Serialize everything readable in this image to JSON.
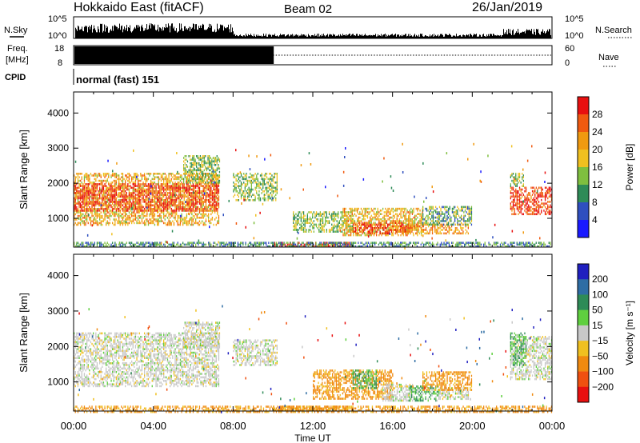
{
  "header": {
    "title": "Hokkaido East (fitACF)",
    "beam": "Beam 02",
    "date": "26/Jan/2019"
  },
  "strip": {
    "nsky_label": "N.Sky",
    "nsearch_label": "N.Search",
    "nsky_ticks": [
      "10^5",
      "10^0"
    ],
    "nsearch_ticks": [
      "10^5",
      "10^0"
    ],
    "freq_label_1": "Freq.",
    "freq_label_2": "[MHz]",
    "freq_ticks": [
      "18",
      "8"
    ],
    "nave_label": "Nave",
    "nave_ticks": [
      "60",
      "0"
    ],
    "cpid_label": "CPID",
    "cpid_text": "normal (fast) 151"
  },
  "axes": {
    "ylabel": "Slant Range [km]",
    "xlabel": "Time UT",
    "y_ticks": [
      "1000",
      "2000",
      "3000",
      "4000"
    ],
    "x_ticks": [
      "00:00",
      "04:00",
      "08:00",
      "12:00",
      "16:00",
      "20:00",
      "00:00"
    ]
  },
  "colorbars": {
    "power": {
      "label": "Power [dB]",
      "ticks": [
        "4",
        "8",
        "12",
        "16",
        "20",
        "24",
        "28"
      ],
      "colors": [
        "#1a1aff",
        "#2f4fbf",
        "#2e8b57",
        "#7fbf3f",
        "#f0c020",
        "#f09a10",
        "#f05a10",
        "#e81010"
      ]
    },
    "velocity": {
      "label": "Velocity [m s⁻¹]",
      "ticks": [
        "200",
        "100",
        "50",
        "15",
        "−15",
        "−50",
        "−100",
        "−200"
      ],
      "colors": [
        "#2020c0",
        "#2e6da4",
        "#2e8b57",
        "#5fcf3f",
        "#c8c8c8",
        "#f0c020",
        "#f08a10",
        "#f05010",
        "#e81010"
      ]
    }
  },
  "chart_data": [
    {
      "type": "heatmap",
      "title": "Power [dB]",
      "xlabel": "Time UT",
      "ylabel": "Slant Range [km]",
      "xlim": [
        "00:00",
        "24:00"
      ],
      "ylim": [
        180,
        4600
      ],
      "color_scale": [
        0,
        32
      ],
      "regions": [
        {
          "t0": 0.0,
          "t1": 7.3,
          "r0": 800,
          "r1": 2300,
          "value": 20
        },
        {
          "t0": 0.0,
          "t1": 7.3,
          "r0": 1200,
          "r1": 2000,
          "value": 28
        },
        {
          "t0": 5.5,
          "t1": 7.3,
          "r0": 2000,
          "r1": 2800,
          "value": 14
        },
        {
          "t0": 8.0,
          "t1": 10.2,
          "r0": 1500,
          "r1": 2300,
          "value": 14
        },
        {
          "t0": 10.0,
          "t1": 14.0,
          "r0": 200,
          "r1": 330,
          "value": 28
        },
        {
          "t0": 11.0,
          "t1": 14.0,
          "r0": 600,
          "r1": 1200,
          "value": 14
        },
        {
          "t0": 13.5,
          "t1": 17.5,
          "r0": 500,
          "r1": 1300,
          "value": 20
        },
        {
          "t0": 14.0,
          "t1": 17.0,
          "r0": 550,
          "r1": 900,
          "value": 28
        },
        {
          "t0": 16.5,
          "t1": 19.8,
          "r0": 550,
          "r1": 850,
          "value": 22
        },
        {
          "t0": 17.5,
          "t1": 20.0,
          "r0": 800,
          "r1": 1350,
          "value": 12
        },
        {
          "t0": 21.9,
          "t1": 24.0,
          "r0": 1100,
          "r1": 1900,
          "value": 28
        },
        {
          "t0": 21.9,
          "t1": 22.6,
          "r0": 1900,
          "r1": 2300,
          "value": 14
        },
        {
          "t0": 0.0,
          "t1": 24.0,
          "r0": 180,
          "r1": 330,
          "value": 10
        }
      ]
    },
    {
      "type": "heatmap",
      "title": "Velocity [m s⁻¹]",
      "xlabel": "Time UT",
      "ylabel": "Slant Range [km]",
      "xlim": [
        "00:00",
        "24:00"
      ],
      "ylim": [
        180,
        4600
      ],
      "color_scale": [
        -200,
        200
      ],
      "regions": [
        {
          "t0": 0.0,
          "t1": 7.3,
          "r0": 900,
          "r1": 2400,
          "value": 0
        },
        {
          "t0": 5.5,
          "t1": 7.3,
          "r0": 2000,
          "r1": 2700,
          "value": 0
        },
        {
          "t0": 8.0,
          "t1": 10.2,
          "r0": 1500,
          "r1": 2200,
          "value": 0
        },
        {
          "t0": 12.0,
          "t1": 16.0,
          "r0": 550,
          "r1": 1350,
          "value": -40
        },
        {
          "t0": 14.0,
          "t1": 15.2,
          "r0": 850,
          "r1": 1350,
          "value": 30
        },
        {
          "t0": 15.5,
          "t1": 17.0,
          "r0": 500,
          "r1": 950,
          "value": 0
        },
        {
          "t0": 16.8,
          "t1": 18.3,
          "r0": 500,
          "r1": 900,
          "value": 30
        },
        {
          "t0": 18.3,
          "t1": 19.8,
          "r0": 550,
          "r1": 850,
          "value": 0
        },
        {
          "t0": 17.5,
          "t1": 20.0,
          "r0": 800,
          "r1": 1300,
          "value": -40
        },
        {
          "t0": 10.0,
          "t1": 14.0,
          "r0": 200,
          "r1": 330,
          "value": -40
        },
        {
          "t0": 21.9,
          "t1": 24.0,
          "r0": 1100,
          "r1": 2300,
          "value": 0
        },
        {
          "t0": 21.9,
          "t1": 22.7,
          "r0": 1500,
          "r1": 2400,
          "value": 30
        },
        {
          "t0": 0.0,
          "t1": 24.0,
          "r0": 180,
          "r1": 330,
          "value": -40
        }
      ]
    },
    {
      "type": "line",
      "title": "N.Sky",
      "xlim": [
        "00:00",
        "24:00"
      ],
      "ylim": [
        "10^0",
        "10^5"
      ],
      "note": "noise level high 00:00-08:00, low thereafter, rising again after 22:00"
    },
    {
      "type": "line",
      "title": "Freq. [MHz]",
      "xlim": [
        "00:00",
        "24:00"
      ],
      "ylim": [
        8,
        18
      ],
      "series": [
        {
          "name": "Freq.",
          "x": [
            "00:00",
            "10:00"
          ],
          "values": [
            18,
            18
          ]
        },
        {
          "name": "Nave",
          "x": [
            "10:00",
            "24:00"
          ],
          "values": [
            12,
            12
          ]
        }
      ]
    }
  ]
}
